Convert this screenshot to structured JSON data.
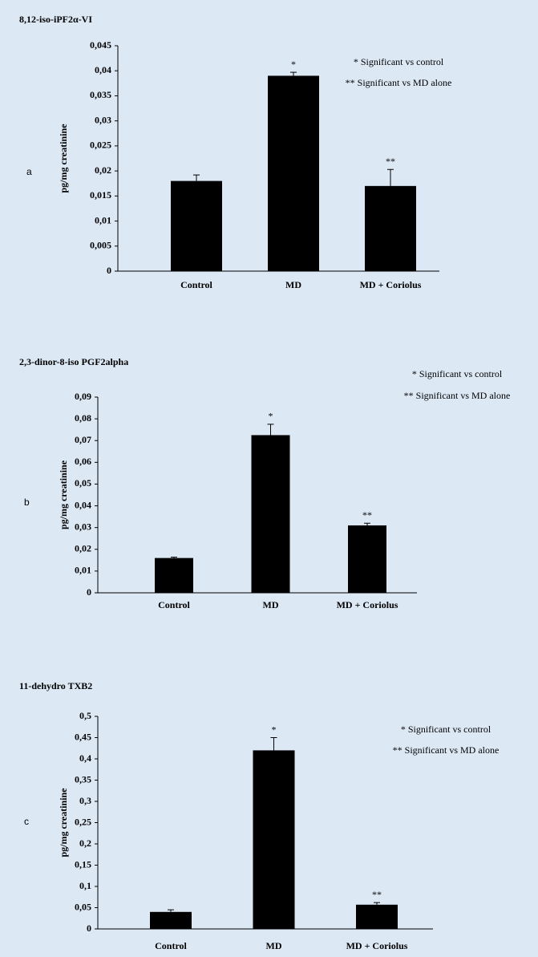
{
  "chart_data": [
    {
      "type": "bar",
      "title": "8,12-iso-iPF2α-VI",
      "panel_label": "a",
      "y_label": "pg/mg creatinine",
      "categories": [
        "Control",
        "MD",
        "MD + Coriolus"
      ],
      "values": [
        0.018,
        0.039,
        0.017
      ],
      "errors": [
        0.0012,
        0.0007,
        0.0033
      ],
      "bar_annotations": [
        null,
        "*",
        "**"
      ],
      "notes": [
        "* Significant vs control",
        "** Significant vs MD alone"
      ],
      "color": "#000000",
      "ylim": [
        0,
        0.045
      ],
      "yticks": [
        0,
        {
          "value": 0.005,
          "label": "0,005"
        },
        {
          "value": 0.01,
          "label": "0,01"
        },
        {
          "value": 0.015,
          "label": "0,015"
        },
        {
          "value": 0.02,
          "label": "0,02"
        },
        {
          "value": 0.025,
          "label": "0,025"
        },
        {
          "value": 0.03,
          "label": "0,03"
        },
        {
          "value": 0.035,
          "label": "0,035"
        },
        {
          "value": 0.04,
          "label": "0,04"
        },
        {
          "value": 0.045,
          "label": "0,045"
        }
      ]
    },
    {
      "type": "bar",
      "title": "2,3-dinor-8-iso PGF2alpha",
      "panel_label": "b",
      "y_label": "pg/mg creatinine",
      "categories": [
        "Control",
        "MD",
        "MD + Coriolus"
      ],
      "values": [
        0.016,
        0.0725,
        0.031
      ],
      "errors": [
        0.0004,
        0.005,
        0.001
      ],
      "bar_annotations": [
        null,
        "*",
        "**"
      ],
      "notes": [
        "* Significant vs control",
        "** Significant vs MD alone"
      ],
      "color": "#000000",
      "ylim": [
        0,
        0.09
      ],
      "yticks": [
        0,
        {
          "value": 0.01,
          "label": "0,01"
        },
        {
          "value": 0.02,
          "label": "0,02"
        },
        {
          "value": 0.03,
          "label": "0,03"
        },
        {
          "value": 0.04,
          "label": "0,04"
        },
        {
          "value": 0.05,
          "label": "0,05"
        },
        {
          "value": 0.06,
          "label": "0,06"
        },
        {
          "value": 0.07,
          "label": "0,07"
        },
        {
          "value": 0.08,
          "label": "0,08"
        },
        {
          "value": 0.09,
          "label": "0,09"
        }
      ]
    },
    {
      "type": "bar",
      "title": "11-dehydro TXB2",
      "panel_label": "c",
      "y_label": "pg/mg creatinine",
      "categories": [
        "Control",
        "MD",
        "MD + Coriolus"
      ],
      "values": [
        0.04,
        0.42,
        0.057
      ],
      "errors": [
        0.005,
        0.03,
        0.005
      ],
      "bar_annotations": [
        null,
        "*",
        "**"
      ],
      "notes": [
        "* Significant vs control",
        "** Significant vs MD alone"
      ],
      "color": "#000000",
      "ylim": [
        0,
        0.5
      ],
      "yticks": [
        0,
        {
          "value": 0.05,
          "label": "0,05"
        },
        {
          "value": 0.1,
          "label": "0,1"
        },
        {
          "value": 0.15,
          "label": "0,15"
        },
        {
          "value": 0.2,
          "label": "0,2"
        },
        {
          "value": 0.25,
          "label": "0,25"
        },
        {
          "value": 0.3,
          "label": "0,3"
        },
        {
          "value": 0.35,
          "label": "0,35"
        },
        {
          "value": 0.4,
          "label": "0,4"
        },
        {
          "value": 0.45,
          "label": "0,45"
        },
        {
          "value": 0.5,
          "label": "0,5"
        }
      ]
    }
  ]
}
